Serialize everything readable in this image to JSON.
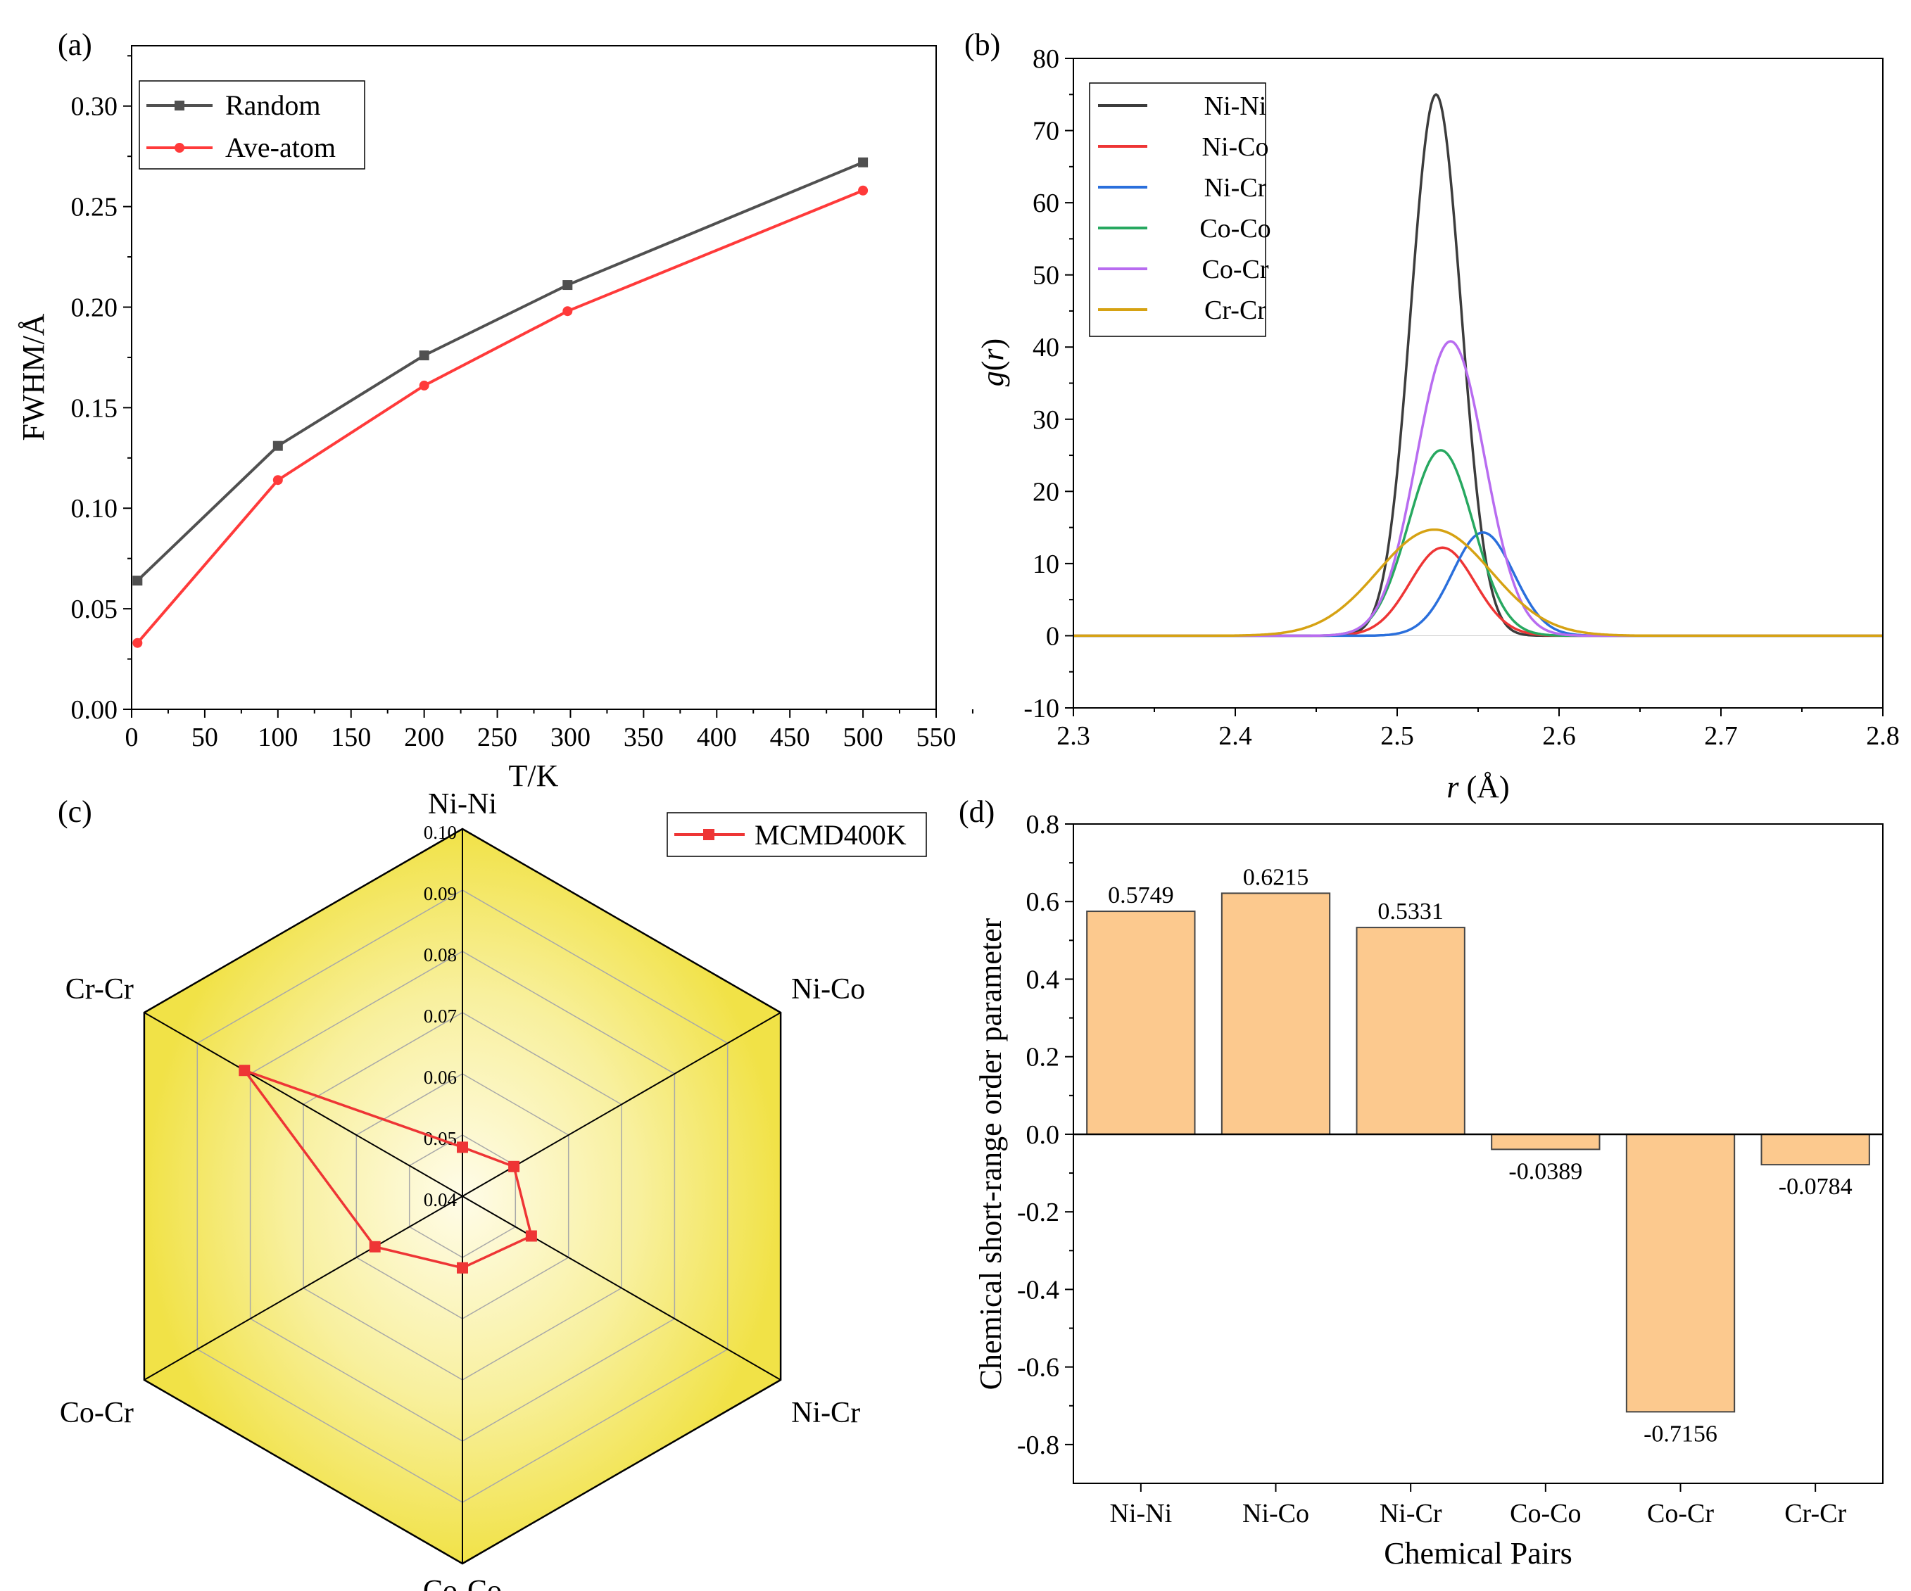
{
  "chart_data": [
    {
      "panel_label": "(a)",
      "type": "line",
      "xlabel": "T/K",
      "ylabel": "FWHM/Å",
      "xlim": [
        0,
        550
      ],
      "ylim": [
        0,
        0.33
      ],
      "xticks": [
        "0",
        "50",
        "100",
        "150",
        "200",
        "250",
        "300",
        "350",
        "400",
        "450",
        "500",
        "550"
      ],
      "xtick_values": [
        0,
        50,
        100,
        150,
        200,
        250,
        300,
        350,
        400,
        450,
        500,
        550
      ],
      "yticks": [
        "0.00",
        "0.05",
        "0.10",
        "0.15",
        "0.20",
        "0.25",
        "0.30"
      ],
      "ytick_values": [
        0,
        0.05,
        0.1,
        0.15,
        0.2,
        0.25,
        0.3
      ],
      "legend_position": "top-left",
      "series": [
        {
          "name": "Random",
          "color": "#505050",
          "marker": "square",
          "x": [
            4,
            100,
            200,
            298,
            500
          ],
          "y": [
            0.064,
            0.131,
            0.176,
            0.211,
            0.272
          ]
        },
        {
          "name": "Ave-atom",
          "color": "#ff3a3a",
          "marker": "circle",
          "x": [
            4,
            100,
            200,
            298,
            500
          ],
          "y": [
            0.033,
            0.114,
            0.161,
            0.198,
            0.258
          ]
        }
      ]
    },
    {
      "panel_label": "(b)",
      "type": "line",
      "xlabel_italic": "r",
      "xlabel_rest": " (Å)",
      "ylabel_italic_g": "g",
      "ylabel_paren_open": "(",
      "ylabel_italic_r": "r",
      "ylabel_paren_close": ")",
      "xlim": [
        2.3,
        2.8
      ],
      "ylim": [
        -10,
        80
      ],
      "xticks": [
        "2.3",
        "2.4",
        "2.5",
        "2.6",
        "2.7",
        "2.8"
      ],
      "xtick_values": [
        2.3,
        2.4,
        2.5,
        2.6,
        2.7,
        2.8
      ],
      "yticks": [
        "-10",
        "0",
        "10",
        "20",
        "30",
        "40",
        "50",
        "60",
        "70",
        "80"
      ],
      "ytick_values": [
        -10,
        0,
        10,
        20,
        30,
        40,
        50,
        60,
        70,
        80
      ],
      "legend_position": "top-left",
      "curve_model": "gaussian",
      "series": [
        {
          "name": "Ni-Ni",
          "color": "#3c3c3c",
          "peak": 75,
          "center": 2.524,
          "sigma": 0.0155
        },
        {
          "name": "Ni-Co",
          "color": "#ee3535",
          "peak": 12.2,
          "center": 2.528,
          "sigma": 0.02
        },
        {
          "name": "Ni-Cr",
          "color": "#2a6fdc",
          "peak": 14.3,
          "center": 2.553,
          "sigma": 0.019
        },
        {
          "name": "Co-Co",
          "color": "#27a860",
          "peak": 25.7,
          "center": 2.527,
          "sigma": 0.02
        },
        {
          "name": "Co-Cr",
          "color": "#b86cf0",
          "peak": 40.8,
          "center": 2.533,
          "sigma": 0.021
        },
        {
          "name": "Cr-Cr",
          "color": "#d6a213",
          "peak": 14.7,
          "center": 2.523,
          "sigma": 0.035
        }
      ]
    },
    {
      "panel_label": "(c)",
      "type": "radar",
      "axes": [
        "Ni-Ni",
        "Ni-Co",
        "Ni-Cr",
        "Co-Co",
        "Co-Cr",
        "Cr-Cr"
      ],
      "rlim": [
        0.04,
        0.1
      ],
      "ring_values": [
        0.04,
        0.05,
        0.06,
        0.07,
        0.08,
        0.09,
        0.1
      ],
      "ring_labels": [
        "0.04",
        "0.05",
        "0.06",
        "0.07",
        "0.08",
        "0.09",
        "0.10"
      ],
      "fill_color": "#f2e34c",
      "legend_position": "top-right",
      "series": [
        {
          "name": "MCMD400K",
          "color": "#ee3535",
          "values": [
            0.048,
            0.0497,
            0.053,
            0.0517,
            0.0565,
            0.0811
          ]
        }
      ]
    },
    {
      "panel_label": "(d)",
      "type": "bar",
      "xlabel": "Chemical Pairs",
      "ylabel": "Chemical short-range order parameter",
      "ylim": [
        -0.9,
        0.8
      ],
      "yticks": [
        "-0.8",
        "-0.6",
        "-0.4",
        "-0.2",
        "0.0",
        "0.2",
        "0.4",
        "0.6",
        "0.8"
      ],
      "ytick_values": [
        -0.8,
        -0.6,
        -0.4,
        -0.2,
        0,
        0.2,
        0.4,
        0.6,
        0.8
      ],
      "bar_color": "#fcc98e",
      "categories": [
        "Ni-Ni",
        "Ni-Co",
        "Ni-Cr",
        "Co-Co",
        "Co-Cr",
        "Cr-Cr"
      ],
      "values": [
        0.5749,
        0.6215,
        0.5331,
        -0.0389,
        -0.7156,
        -0.0784
      ],
      "value_labels": [
        "0.5749",
        "0.6215",
        "0.5331",
        "-0.0389",
        "-0.7156",
        "-0.0784"
      ]
    }
  ]
}
